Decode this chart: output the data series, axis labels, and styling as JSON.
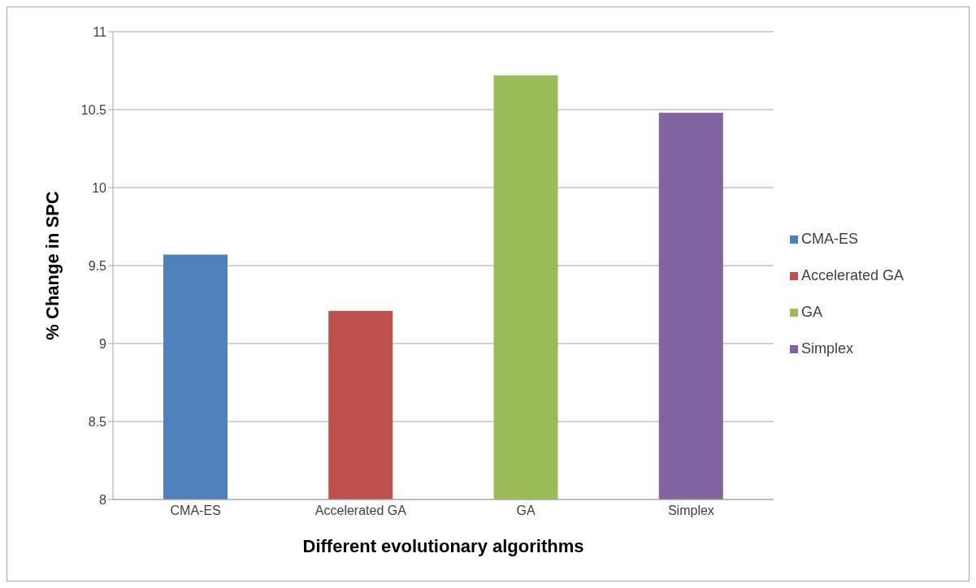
{
  "chart_data": {
    "type": "bar",
    "xlabel": "Different evolutionary algorithms",
    "ylabel": "% Change in SPC",
    "categories": [
      "CMA-ES",
      "Accelerated GA",
      "GA",
      "Simplex"
    ],
    "series": [
      {
        "name": "CMA-ES",
        "color": "#4f81bd",
        "values": [
          9.57,
          null,
          null,
          null
        ]
      },
      {
        "name": "Accelerated GA",
        "color": "#c0504d",
        "values": [
          null,
          9.21,
          null,
          null
        ]
      },
      {
        "name": "GA",
        "color": "#9bbb59",
        "values": [
          null,
          null,
          10.72,
          null
        ]
      },
      {
        "name": "Simplex",
        "color": "#8064a2",
        "values": [
          null,
          null,
          null,
          10.48
        ]
      }
    ],
    "stacked": true,
    "ylim": [
      8,
      11
    ],
    "yticks": [
      8,
      8.5,
      9,
      9.5,
      10,
      10.5,
      11
    ],
    "grid": "y",
    "legend": "right"
  }
}
